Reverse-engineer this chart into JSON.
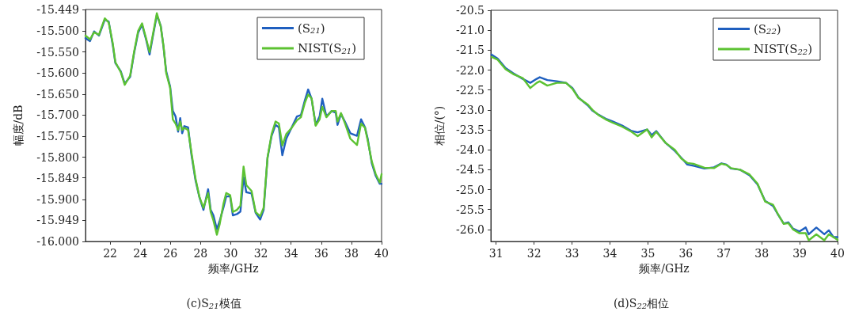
{
  "chart_data": [
    {
      "type": "line",
      "title": "(c)S$_{21}$模值",
      "xlabel": "频率/GHz",
      "ylabel": "幅度/dB",
      "xlim": [
        20.37,
        40
      ],
      "xticks": [
        22,
        24,
        26,
        28,
        30,
        32,
        34,
        36,
        38,
        40
      ],
      "ylim": [
        -16.0,
        -15.449
      ],
      "yticks": [
        {
          "value": -15.449,
          "label": "-15.449"
        },
        {
          "value": -15.5,
          "label": "-15.500"
        },
        {
          "value": -15.55,
          "label": "-15.550"
        },
        {
          "value": -15.6,
          "label": "-15.600"
        },
        {
          "value": -15.65,
          "label": "-15.650"
        },
        {
          "value": -15.7,
          "label": "-15.700"
        },
        {
          "value": -15.75,
          "label": "-15.750"
        },
        {
          "value": -15.8,
          "label": "-15.800"
        },
        {
          "value": -15.849,
          "label": "-15.849"
        },
        {
          "value": -15.9,
          "label": "-15.900"
        },
        {
          "value": -15.949,
          "label": "-15.949"
        },
        {
          "value": -16.0,
          "label": "-16.000"
        }
      ],
      "grid": false,
      "legend": "top right",
      "marker": "none",
      "line_style": "solid",
      "series": [
        {
          "name": "(S$_{21}$)",
          "color": "#1f5fbf",
          "x": [
            20.37,
            20.67,
            20.94,
            21.26,
            21.65,
            21.91,
            22.18,
            22.35,
            22.71,
            22.97,
            23.33,
            23.59,
            23.86,
            24.12,
            24.39,
            24.62,
            24.83,
            25.1,
            25.36,
            25.54,
            25.72,
            25.98,
            26.16,
            26.34,
            26.51,
            26.65,
            26.78,
            26.92,
            27.17,
            27.4,
            27.66,
            27.93,
            28.19,
            28.5,
            28.67,
            28.85,
            29.08,
            29.26,
            29.52,
            29.7,
            29.96,
            30.14,
            30.41,
            30.64,
            30.85,
            31.03,
            31.38,
            31.65,
            31.95,
            32.18,
            32.44,
            32.71,
            32.97,
            33.19,
            33.42,
            33.68,
            34.04,
            34.39,
            34.65,
            34.92,
            35.13,
            35.36,
            35.63,
            35.89,
            36.07,
            36.34,
            36.69,
            36.96,
            37.08,
            37.31,
            37.58,
            37.93,
            38.37,
            38.64,
            38.9,
            39.08,
            39.35,
            39.61,
            39.88,
            40.0
          ],
          "values": [
            -15.517,
            -15.524,
            -15.501,
            -15.511,
            -15.473,
            -15.478,
            -15.534,
            -15.576,
            -15.596,
            -15.625,
            -15.609,
            -15.553,
            -15.504,
            -15.485,
            -15.521,
            -15.556,
            -15.514,
            -15.462,
            -15.488,
            -15.537,
            -15.596,
            -15.632,
            -15.69,
            -15.703,
            -15.739,
            -15.707,
            -15.743,
            -15.726,
            -15.729,
            -15.795,
            -15.854,
            -15.896,
            -15.925,
            -15.876,
            -15.925,
            -15.938,
            -15.971,
            -15.952,
            -15.919,
            -15.893,
            -15.893,
            -15.938,
            -15.935,
            -15.929,
            -15.847,
            -15.883,
            -15.886,
            -15.932,
            -15.948,
            -15.925,
            -15.801,
            -15.749,
            -15.723,
            -15.729,
            -15.795,
            -15.756,
            -15.729,
            -15.703,
            -15.7,
            -15.664,
            -15.639,
            -15.661,
            -15.723,
            -15.703,
            -15.661,
            -15.703,
            -15.69,
            -15.694,
            -15.723,
            -15.697,
            -15.716,
            -15.743,
            -15.749,
            -15.71,
            -15.729,
            -15.756,
            -15.814,
            -15.844,
            -15.863,
            -15.863
          ]
        },
        {
          "name": "NIST(S$_{21}$)",
          "color": "#5cc232",
          "x": [
            20.37,
            20.67,
            20.94,
            21.26,
            21.65,
            21.91,
            22.18,
            22.35,
            22.71,
            22.97,
            23.33,
            23.59,
            23.86,
            24.12,
            24.39,
            24.62,
            24.83,
            25.1,
            25.36,
            25.54,
            25.72,
            25.98,
            26.16,
            26.34,
            26.51,
            26.65,
            26.78,
            26.92,
            27.17,
            27.4,
            27.66,
            27.93,
            28.19,
            28.5,
            28.67,
            28.85,
            29.08,
            29.26,
            29.52,
            29.7,
            29.96,
            30.14,
            30.41,
            30.64,
            30.85,
            31.03,
            31.38,
            31.65,
            31.95,
            32.18,
            32.44,
            32.71,
            32.97,
            33.19,
            33.42,
            33.68,
            34.04,
            34.39,
            34.65,
            34.92,
            35.13,
            35.36,
            35.63,
            35.89,
            36.07,
            36.34,
            36.69,
            36.96,
            37.08,
            37.31,
            37.58,
            37.93,
            38.37,
            38.64,
            38.9,
            39.08,
            39.35,
            39.61,
            39.88,
            40.0
          ],
          "values": [
            -15.511,
            -15.52,
            -15.503,
            -15.509,
            -15.47,
            -15.48,
            -15.53,
            -15.574,
            -15.598,
            -15.628,
            -15.606,
            -15.55,
            -15.5,
            -15.482,
            -15.518,
            -15.55,
            -15.51,
            -15.458,
            -15.49,
            -15.535,
            -15.6,
            -15.635,
            -15.71,
            -15.72,
            -15.735,
            -15.715,
            -15.735,
            -15.73,
            -15.735,
            -15.79,
            -15.85,
            -15.895,
            -15.92,
            -15.885,
            -15.93,
            -15.95,
            -15.984,
            -15.96,
            -15.91,
            -15.885,
            -15.89,
            -15.93,
            -15.925,
            -15.915,
            -15.822,
            -15.866,
            -15.88,
            -15.93,
            -15.94,
            -15.92,
            -15.8,
            -15.745,
            -15.715,
            -15.72,
            -15.772,
            -15.745,
            -15.73,
            -15.712,
            -15.705,
            -15.67,
            -15.651,
            -15.66,
            -15.725,
            -15.71,
            -15.68,
            -15.705,
            -15.69,
            -15.69,
            -15.715,
            -15.695,
            -15.72,
            -15.756,
            -15.771,
            -15.72,
            -15.73,
            -15.76,
            -15.81,
            -15.84,
            -15.86,
            -15.84
          ]
        }
      ]
    },
    {
      "type": "line",
      "title": "(d)S$_{22}$相位",
      "xlabel": "频率/GHz",
      "ylabel": "相位/(°)",
      "xlim": [
        30.86,
        40
      ],
      "xticks": [
        31,
        32,
        33,
        34,
        35,
        36,
        37,
        38,
        39,
        40
      ],
      "ylim": [
        -26.3,
        -20.5
      ],
      "yticks": [
        -20.5,
        {
          "value": -21,
          "label": "-21.0"
        },
        -21.5,
        {
          "value": -22,
          "label": "-22.0"
        },
        -22.5,
        {
          "value": -23,
          "label": "-23.0"
        },
        -23.5,
        {
          "value": -24,
          "label": "-24.0"
        },
        -24.5,
        {
          "value": -25,
          "label": "-25.0"
        },
        -25.5,
        {
          "value": -26,
          "label": "-26.0"
        }
      ],
      "grid": false,
      "legend": "top right",
      "marker": "none",
      "line_style": "solid",
      "series": [
        {
          "name": "(S$_{22}$)",
          "color": "#1f5fbf",
          "x": [
            30.88,
            31.04,
            31.25,
            31.45,
            31.7,
            31.9,
            32.07,
            32.15,
            32.35,
            32.6,
            32.84,
            33.01,
            33.17,
            33.42,
            33.54,
            33.7,
            33.91,
            34.07,
            34.32,
            34.57,
            34.73,
            34.98,
            35.1,
            35.22,
            35.47,
            35.71,
            35.88,
            36.04,
            36.2,
            36.49,
            36.74,
            36.94,
            37.07,
            37.19,
            37.43,
            37.68,
            37.89,
            38.09,
            38.3,
            38.42,
            38.58,
            38.7,
            38.83,
            38.99,
            39.16,
            39.24,
            39.44,
            39.65,
            39.77,
            39.89,
            40.0
          ],
          "values": [
            -21.61,
            -21.71,
            -21.95,
            -22.08,
            -22.22,
            -22.32,
            -22.22,
            -22.18,
            -22.25,
            -22.28,
            -22.32,
            -22.45,
            -22.69,
            -22.89,
            -23.02,
            -23.12,
            -23.23,
            -23.29,
            -23.39,
            -23.53,
            -23.56,
            -23.49,
            -23.63,
            -23.53,
            -23.83,
            -24.03,
            -24.2,
            -24.37,
            -24.4,
            -24.47,
            -24.44,
            -24.34,
            -24.37,
            -24.47,
            -24.5,
            -24.64,
            -24.87,
            -25.28,
            -25.41,
            -25.61,
            -25.85,
            -25.82,
            -25.98,
            -26.05,
            -25.95,
            -26.12,
            -25.95,
            -26.12,
            -26.02,
            -26.19,
            -26.19
          ]
        },
        {
          "name": "NIST(S$_{22}$)",
          "color": "#5cc232",
          "x": [
            30.88,
            31.04,
            31.25,
            31.45,
            31.7,
            31.9,
            32.07,
            32.15,
            32.35,
            32.6,
            32.84,
            33.01,
            33.17,
            33.42,
            33.54,
            33.7,
            33.91,
            34.07,
            34.32,
            34.57,
            34.73,
            34.98,
            35.1,
            35.22,
            35.47,
            35.71,
            35.88,
            36.04,
            36.2,
            36.49,
            36.74,
            36.94,
            37.07,
            37.19,
            37.43,
            37.68,
            37.89,
            38.09,
            38.3,
            38.42,
            38.58,
            38.7,
            38.83,
            38.99,
            39.16,
            39.24,
            39.44,
            39.65,
            39.77,
            39.89,
            40.0
          ],
          "values": [
            -21.67,
            -21.74,
            -21.98,
            -22.1,
            -22.2,
            -22.45,
            -22.32,
            -22.28,
            -22.39,
            -22.32,
            -22.32,
            -22.47,
            -22.7,
            -22.87,
            -23.0,
            -23.13,
            -23.25,
            -23.32,
            -23.42,
            -23.55,
            -23.66,
            -23.49,
            -23.69,
            -23.55,
            -23.83,
            -24.0,
            -24.22,
            -24.33,
            -24.35,
            -24.45,
            -24.46,
            -24.35,
            -24.38,
            -24.46,
            -24.5,
            -24.62,
            -24.85,
            -25.3,
            -25.38,
            -25.6,
            -25.86,
            -25.84,
            -26.0,
            -26.09,
            -26.09,
            -26.27,
            -26.12,
            -26.27,
            -26.12,
            -26.19,
            -26.26
          ]
        }
      ]
    }
  ]
}
